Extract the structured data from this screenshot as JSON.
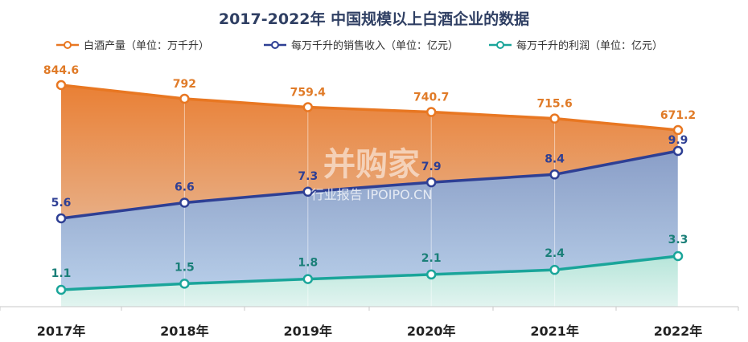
{
  "chart_data": {
    "type": "area",
    "title": "2017-2022年 中国规模以上白酒企业的数据",
    "categories": [
      "2017年",
      "2018年",
      "2019年",
      "2020年",
      "2021年",
      "2022年"
    ],
    "series": [
      {
        "name": "白酒产量（单位：万千升）",
        "values": [
          844.6,
          792,
          759.4,
          740.7,
          715.6,
          671.2
        ],
        "labels": [
          "844.6",
          "792",
          "759.4",
          "740.7",
          "715.6",
          "671.2"
        ],
        "color": "#e87722"
      },
      {
        "name": "每万千升的销售收入（单位：亿元）",
        "values": [
          5.6,
          6.6,
          7.3,
          7.9,
          8.4,
          9.9
        ],
        "labels": [
          "5.6",
          "6.6",
          "7.3",
          "7.9",
          "8.4",
          "9.9"
        ],
        "color": "#2e3f94"
      },
      {
        "name": "每万千升的利润（单位：亿元）",
        "values": [
          1.1,
          1.5,
          1.8,
          2.1,
          2.4,
          3.3
        ],
        "labels": [
          "1.1",
          "1.5",
          "1.8",
          "2.1",
          "2.4",
          "3.3"
        ],
        "color": "#1aa59a"
      }
    ],
    "legend_position": "top",
    "grid": false
  },
  "watermark": {
    "brand": "并购家",
    "sub": "行业报告 IPOIPO.CN"
  }
}
